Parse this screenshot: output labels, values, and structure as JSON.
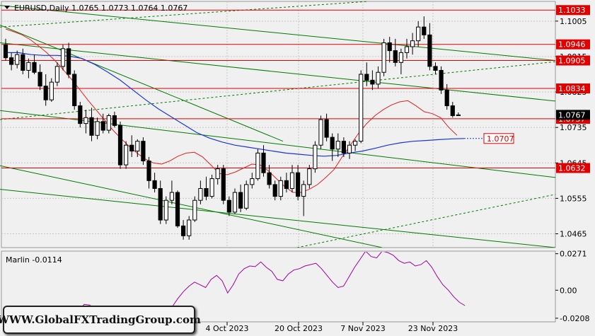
{
  "header": {
    "symbol_line": "EURUSD,Daily  1.0765 1.0773 1.0764 1.0767",
    "indicator_line": "Marlin -0.0114"
  },
  "watermark": "WWW.GlobalFXTradingGroup.com",
  "colors": {
    "background": "#f0f0f0",
    "grid": "#c8c8c8",
    "level_line": "#e00000",
    "level_label_bg": "#e00000",
    "ma_fast": "#e02020",
    "ma_slow": "#1a35d6",
    "channel": "#007a00",
    "oscillator": "#a000a0",
    "bull_fill": "#ffffff",
    "bear_fill": "#000000"
  },
  "chart_data": [
    {
      "type": "candlestick",
      "title": "EURUSD,Daily",
      "ohlc_last": {
        "open": 1.0765,
        "high": 1.0773,
        "low": 1.0764,
        "close": 1.0767
      },
      "ylim": [
        1.043,
        1.1055
      ],
      "y_ticks": [
        "1.1005",
        "1.0915",
        "1.0825",
        "1.0735",
        "1.0645",
        "1.0555",
        "1.0465"
      ],
      "x_labels": [
        "4 Oct 2023",
        "20 Oct 2023",
        "7 Nov 2023",
        "23 Nov 2023"
      ],
      "current_price_label": "1.0767",
      "levels": [
        "1.1033",
        "1.0946",
        "1.0905",
        "1.0834",
        "1.0757",
        "1.0632"
      ],
      "ma_slow_value_label": "1.0707",
      "candles": [
        [
          1.0945,
          1.096,
          1.0905,
          1.0912
        ],
        [
          1.0912,
          1.0925,
          1.088,
          1.0895
        ],
        [
          1.0895,
          1.093,
          1.0885,
          1.092
        ],
        [
          1.092,
          1.0935,
          1.087,
          1.088
        ],
        [
          1.088,
          1.091,
          1.086,
          1.09
        ],
        [
          1.09,
          1.092,
          1.087,
          1.0875
        ],
        [
          1.0875,
          1.0895,
          1.083,
          1.084
        ],
        [
          1.084,
          1.087,
          1.079,
          1.0805
        ],
        [
          1.0805,
          1.086,
          1.08,
          1.085
        ],
        [
          1.085,
          1.09,
          1.084,
          1.089
        ],
        [
          1.089,
          1.0945,
          1.088,
          1.0935
        ],
        [
          1.0935,
          1.095,
          1.086,
          1.087
        ],
        [
          1.087,
          1.088,
          1.078,
          1.079
        ],
        [
          1.079,
          1.08,
          1.0735,
          1.0745
        ],
        [
          1.0745,
          1.078,
          1.072,
          1.076
        ],
        [
          1.076,
          1.0785,
          1.07,
          1.0715
        ],
        [
          1.0715,
          1.076,
          1.0705,
          1.075
        ],
        [
          1.075,
          1.077,
          1.072,
          1.0728
        ],
        [
          1.0728,
          1.077,
          1.072,
          1.0765
        ],
        [
          1.0765,
          1.0775,
          1.0735,
          1.074
        ],
        [
          1.074,
          1.075,
          1.063,
          1.064
        ],
        [
          1.064,
          1.07,
          1.063,
          1.069
        ],
        [
          1.069,
          1.0715,
          1.066,
          1.0675
        ],
        [
          1.0675,
          1.0705,
          1.066,
          1.07
        ],
        [
          1.07,
          1.071,
          1.064,
          1.065
        ],
        [
          1.065,
          1.066,
          1.058,
          1.06
        ],
        [
          1.06,
          1.062,
          1.057,
          1.058
        ],
        [
          1.058,
          1.06,
          1.049,
          1.05
        ],
        [
          1.05,
          1.056,
          1.049,
          1.055
        ],
        [
          1.055,
          1.06,
          1.054,
          1.057
        ],
        [
          1.057,
          1.0575,
          1.048,
          1.0485
        ],
        [
          1.0485,
          1.05,
          1.045,
          1.046
        ],
        [
          1.046,
          1.051,
          1.045,
          1.05
        ],
        [
          1.05,
          1.056,
          1.0495,
          1.055
        ],
        [
          1.055,
          1.06,
          1.054,
          1.058
        ],
        [
          1.058,
          1.061,
          1.055,
          1.056
        ],
        [
          1.056,
          1.0615,
          1.0555,
          1.0605
        ],
        [
          1.0605,
          1.064,
          1.059,
          1.063
        ],
        [
          1.063,
          1.064,
          1.054,
          1.055
        ],
        [
          1.055,
          1.056,
          1.051,
          1.052
        ],
        [
          1.052,
          1.058,
          1.0515,
          1.057
        ],
        [
          1.057,
          1.059,
          1.052,
          1.053
        ],
        [
          1.053,
          1.06,
          1.0525,
          1.059
        ],
        [
          1.059,
          1.062,
          1.058,
          1.0605
        ],
        [
          1.0605,
          1.068,
          1.06,
          1.067
        ],
        [
          1.067,
          1.069,
          1.061,
          1.062
        ],
        [
          1.062,
          1.064,
          1.058,
          1.059
        ],
        [
          1.059,
          1.06,
          1.055,
          1.056
        ],
        [
          1.056,
          1.061,
          1.055,
          1.06
        ],
        [
          1.06,
          1.062,
          1.057,
          1.058
        ],
        [
          1.058,
          1.064,
          1.057,
          1.062
        ],
        [
          1.062,
          1.064,
          1.055,
          1.056
        ],
        [
          1.056,
          1.06,
          1.051,
          1.059
        ],
        [
          1.059,
          1.064,
          1.058,
          1.063
        ],
        [
          1.063,
          1.07,
          1.062,
          1.069
        ],
        [
          1.069,
          1.0765,
          1.068,
          1.0755
        ],
        [
          1.0755,
          1.077,
          1.07,
          1.071
        ],
        [
          1.071,
          1.072,
          1.065,
          1.068
        ],
        [
          1.068,
          1.072,
          1.066,
          1.07
        ],
        [
          1.07,
          1.071,
          1.066,
          1.067
        ],
        [
          1.067,
          1.07,
          1.0655,
          1.069
        ],
        [
          1.069,
          1.0705,
          1.0675,
          1.07
        ],
        [
          1.07,
          1.088,
          1.0695,
          1.087
        ],
        [
          1.087,
          1.09,
          1.084,
          1.0855
        ],
        [
          1.0855,
          1.088,
          1.083,
          1.0845
        ],
        [
          1.0845,
          1.089,
          1.0835,
          1.0875
        ],
        [
          1.0875,
          1.096,
          1.0865,
          1.095
        ],
        [
          1.095,
          1.0965,
          1.09,
          1.093
        ],
        [
          1.093,
          1.096,
          1.089,
          1.09
        ],
        [
          1.09,
          1.0935,
          1.087,
          1.0925
        ],
        [
          1.0925,
          1.096,
          1.091,
          1.094
        ],
        [
          1.094,
          1.0975,
          1.092,
          1.0955
        ],
        [
          1.0955,
          1.1005,
          1.094,
          1.099
        ],
        [
          1.099,
          1.1017,
          1.096,
          1.097
        ],
        [
          1.097,
          1.1,
          1.088,
          1.089
        ],
        [
          1.089,
          1.09,
          1.087,
          1.088
        ],
        [
          1.088,
          1.089,
          1.082,
          1.083
        ],
        [
          1.083,
          1.0845,
          1.078,
          1.079
        ],
        [
          1.079,
          1.08,
          1.076,
          1.0765
        ],
        [
          1.0765,
          1.0773,
          1.0764,
          1.0767
        ]
      ],
      "ma_fast": [
        1.0985,
        1.0978,
        1.097,
        1.0958,
        1.0942,
        1.0925,
        1.0905,
        1.0882,
        1.0858,
        1.0832,
        1.0805,
        1.078,
        1.0755,
        1.073,
        1.0708,
        1.0688,
        1.067,
        1.0655,
        1.0645,
        1.0642,
        1.065,
        1.0662,
        1.067,
        1.0672,
        1.066,
        1.064,
        1.0618,
        1.0615,
        1.0622,
        1.0632,
        1.0642,
        1.064,
        1.0625,
        1.0605,
        1.0585,
        1.057,
        1.057,
        1.0578,
        1.059,
        1.0608,
        1.0628,
        1.066,
        1.069,
        1.072,
        1.0745,
        1.0765,
        1.078,
        1.0792,
        1.08,
        1.0803,
        1.079,
        1.0775,
        1.077,
        1.076,
        1.0735,
        1.0715
      ],
      "ma_slow": [
        1.0925,
        1.0925,
        1.092,
        1.0918,
        1.0918,
        1.0916,
        1.091,
        1.0895,
        1.0876,
        1.0855,
        1.083,
        1.0805,
        1.0782,
        1.0762,
        1.0742,
        1.0722,
        1.0708,
        1.0698,
        1.069,
        1.0685,
        1.068,
        1.0675,
        1.067,
        1.0667,
        1.0664,
        1.0662,
        1.0664,
        1.067,
        1.0675,
        1.0682,
        1.069,
        1.0696,
        1.07,
        1.0702,
        1.0704,
        1.0706,
        1.0707
      ],
      "ma_fast_x_step": 11.6,
      "ma_slow_x_step": 18.0
    },
    {
      "type": "line",
      "title": "Marlin",
      "value_label": "-0.0114",
      "ylim": [
        -0.0235,
        0.0285
      ],
      "y_ticks": [
        "0.0271",
        "0.00",
        "-0.0208"
      ],
      "values": [
        -0.0225,
        -0.0215,
        -0.02,
        -0.019,
        -0.0155,
        -0.0105,
        -0.011,
        -0.0145,
        -0.012,
        -0.015,
        -0.016,
        -0.014,
        -0.017,
        -0.0195,
        -0.0215,
        -0.022,
        -0.021,
        -0.0215,
        -0.0205,
        -0.019,
        -0.0175,
        -0.012,
        -0.006,
        -0.001,
        0.003,
        0.006,
        0.004,
        0.002,
        0.008,
        0.011,
        0.007,
        -0.002,
        0.004,
        0.012,
        0.016,
        0.018,
        0.0175,
        0.021,
        0.017,
        0.014,
        0.008,
        0.007,
        0.012,
        0.015,
        0.016,
        0.018,
        0.019,
        0.02,
        0.016,
        0.011,
        0.006,
        0.002,
        0.003,
        0.01,
        0.017,
        0.023,
        0.029,
        0.025,
        0.024,
        0.029,
        0.028,
        0.026,
        0.022,
        0.02,
        0.021,
        0.018,
        0.019,
        0.022,
        0.017,
        0.01,
        0.004,
        0.0,
        -0.005,
        -0.009,
        -0.0114
      ]
    }
  ]
}
